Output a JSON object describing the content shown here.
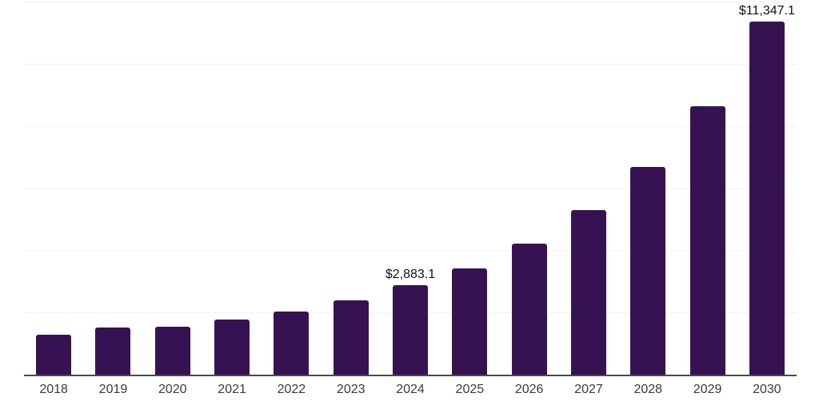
{
  "chart_data": {
    "type": "bar",
    "title": "",
    "xlabel": "",
    "ylabel": "",
    "categories": [
      "2018",
      "2019",
      "2020",
      "2021",
      "2022",
      "2023",
      "2024",
      "2025",
      "2026",
      "2027",
      "2028",
      "2029",
      "2030"
    ],
    "values": [
      1275,
      1515,
      1555,
      1775,
      2030,
      2390,
      2883.1,
      3430,
      4220,
      5290,
      6670,
      8635,
      11347.1
    ],
    "data_labels": [
      {
        "category": "2024",
        "text": "$2,883.1"
      },
      {
        "category": "2030",
        "text": "$11,347.1"
      }
    ],
    "ylim": [
      0,
      12000
    ],
    "gridline_step": 2000,
    "grid": "horizontal",
    "legend": "none",
    "y_axis_labels_visible": false
  },
  "colors": {
    "background": "#ffffff",
    "bar": "#371253",
    "gridline": "#f2f2f2",
    "axis_line": "#4a4a4a",
    "tick_label": "#3a3a3a",
    "data_label": "#111111"
  }
}
